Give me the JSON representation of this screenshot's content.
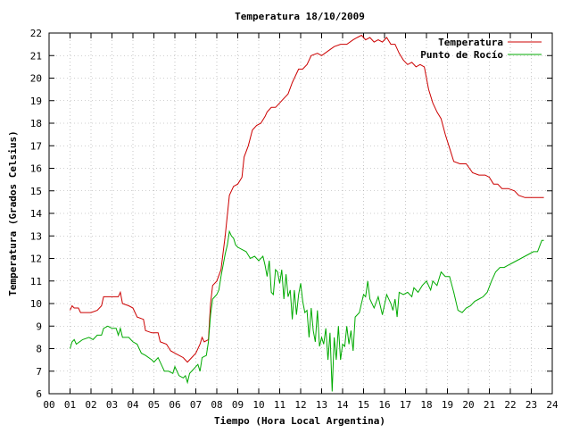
{
  "chart_data": {
    "type": "line",
    "title": "Temperatura 18/10/2009",
    "xlabel": "Tiempo (Hora Local Argentina)",
    "ylabel": "Temperatura (Grados Celsius)",
    "xlim": [
      0,
      24
    ],
    "ylim": [
      6,
      22
    ],
    "x_ticks": [
      0,
      1,
      2,
      3,
      4,
      5,
      6,
      7,
      8,
      9,
      10,
      11,
      12,
      13,
      14,
      15,
      16,
      17,
      18,
      19,
      20,
      21,
      22,
      23,
      24
    ],
    "x_tick_labels": [
      "00",
      "01",
      "02",
      "03",
      "04",
      "05",
      "06",
      "07",
      "08",
      "09",
      "10",
      "11",
      "12",
      "13",
      "14",
      "15",
      "16",
      "17",
      "18",
      "19",
      "20",
      "21",
      "22",
      "23",
      "24"
    ],
    "y_ticks": [
      6,
      7,
      8,
      9,
      10,
      11,
      12,
      13,
      14,
      15,
      16,
      17,
      18,
      19,
      20,
      21,
      22
    ],
    "y_tick_labels": [
      "6",
      "7",
      "8",
      "9",
      "10",
      "11",
      "12",
      "13",
      "14",
      "15",
      "16",
      "17",
      "18",
      "19",
      "20",
      "21",
      "22"
    ],
    "grid": true,
    "legend_position": "top-right",
    "series": [
      {
        "name": "Temperatura",
        "color": "#cc0000",
        "points": [
          [
            1.0,
            9.7
          ],
          [
            1.1,
            9.9
          ],
          [
            1.2,
            9.8
          ],
          [
            1.4,
            9.8
          ],
          [
            1.5,
            9.6
          ],
          [
            2.0,
            9.6
          ],
          [
            2.3,
            9.7
          ],
          [
            2.5,
            9.9
          ],
          [
            2.6,
            10.3
          ],
          [
            3.0,
            10.3
          ],
          [
            3.3,
            10.3
          ],
          [
            3.4,
            10.5
          ],
          [
            3.5,
            10.0
          ],
          [
            3.8,
            9.9
          ],
          [
            4.0,
            9.8
          ],
          [
            4.2,
            9.4
          ],
          [
            4.5,
            9.3
          ],
          [
            4.6,
            8.8
          ],
          [
            4.9,
            8.7
          ],
          [
            5.2,
            8.7
          ],
          [
            5.3,
            8.3
          ],
          [
            5.6,
            8.2
          ],
          [
            5.8,
            7.9
          ],
          [
            6.0,
            7.8
          ],
          [
            6.2,
            7.7
          ],
          [
            6.4,
            7.6
          ],
          [
            6.6,
            7.4
          ],
          [
            6.8,
            7.6
          ],
          [
            7.0,
            7.8
          ],
          [
            7.2,
            8.2
          ],
          [
            7.3,
            8.5
          ],
          [
            7.4,
            8.3
          ],
          [
            7.6,
            8.4
          ],
          [
            7.7,
            10.0
          ],
          [
            7.8,
            10.8
          ],
          [
            8.0,
            11.0
          ],
          [
            8.2,
            11.5
          ],
          [
            8.4,
            13.0
          ],
          [
            8.6,
            14.8
          ],
          [
            8.8,
            15.2
          ],
          [
            9.0,
            15.3
          ],
          [
            9.2,
            15.6
          ],
          [
            9.3,
            16.5
          ],
          [
            9.5,
            17.0
          ],
          [
            9.7,
            17.7
          ],
          [
            9.9,
            17.9
          ],
          [
            10.1,
            18.0
          ],
          [
            10.3,
            18.3
          ],
          [
            10.4,
            18.5
          ],
          [
            10.6,
            18.7
          ],
          [
            10.8,
            18.7
          ],
          [
            11.0,
            18.9
          ],
          [
            11.2,
            19.1
          ],
          [
            11.4,
            19.3
          ],
          [
            11.6,
            19.8
          ],
          [
            11.9,
            20.4
          ],
          [
            12.1,
            20.4
          ],
          [
            12.3,
            20.6
          ],
          [
            12.5,
            21.0
          ],
          [
            12.8,
            21.1
          ],
          [
            13.0,
            21.0
          ],
          [
            13.3,
            21.2
          ],
          [
            13.6,
            21.4
          ],
          [
            13.9,
            21.5
          ],
          [
            14.2,
            21.5
          ],
          [
            14.5,
            21.7
          ],
          [
            14.7,
            21.8
          ],
          [
            14.9,
            21.9
          ],
          [
            15.1,
            21.7
          ],
          [
            15.3,
            21.8
          ],
          [
            15.5,
            21.6
          ],
          [
            15.7,
            21.7
          ],
          [
            15.9,
            21.6
          ],
          [
            16.1,
            21.8
          ],
          [
            16.3,
            21.5
          ],
          [
            16.5,
            21.5
          ],
          [
            16.7,
            21.1
          ],
          [
            16.9,
            20.8
          ],
          [
            17.1,
            20.6
          ],
          [
            17.3,
            20.7
          ],
          [
            17.5,
            20.5
          ],
          [
            17.7,
            20.6
          ],
          [
            17.9,
            20.5
          ],
          [
            18.1,
            19.5
          ],
          [
            18.3,
            18.9
          ],
          [
            18.5,
            18.5
          ],
          [
            18.7,
            18.2
          ],
          [
            18.9,
            17.5
          ],
          [
            19.1,
            16.9
          ],
          [
            19.3,
            16.3
          ],
          [
            19.6,
            16.2
          ],
          [
            19.9,
            16.2
          ],
          [
            20.2,
            15.8
          ],
          [
            20.5,
            15.7
          ],
          [
            20.8,
            15.7
          ],
          [
            21.0,
            15.6
          ],
          [
            21.2,
            15.3
          ],
          [
            21.4,
            15.3
          ],
          [
            21.6,
            15.1
          ],
          [
            21.9,
            15.1
          ],
          [
            22.2,
            15.0
          ],
          [
            22.4,
            14.8
          ],
          [
            22.7,
            14.7
          ],
          [
            23.0,
            14.7
          ],
          [
            23.3,
            14.7
          ],
          [
            23.6,
            14.7
          ]
        ]
      },
      {
        "name": "Punto de Rocío",
        "color": "#00aa00",
        "points": [
          [
            1.0,
            8.0
          ],
          [
            1.1,
            8.3
          ],
          [
            1.2,
            8.4
          ],
          [
            1.3,
            8.2
          ],
          [
            1.6,
            8.4
          ],
          [
            1.9,
            8.5
          ],
          [
            2.1,
            8.4
          ],
          [
            2.3,
            8.6
          ],
          [
            2.5,
            8.6
          ],
          [
            2.6,
            8.9
          ],
          [
            2.8,
            9.0
          ],
          [
            3.0,
            8.9
          ],
          [
            3.2,
            8.9
          ],
          [
            3.3,
            8.6
          ],
          [
            3.4,
            8.9
          ],
          [
            3.5,
            8.5
          ],
          [
            3.8,
            8.5
          ],
          [
            4.0,
            8.3
          ],
          [
            4.2,
            8.2
          ],
          [
            4.4,
            7.8
          ],
          [
            4.6,
            7.7
          ],
          [
            4.9,
            7.5
          ],
          [
            5.0,
            7.4
          ],
          [
            5.2,
            7.6
          ],
          [
            5.4,
            7.2
          ],
          [
            5.5,
            7.0
          ],
          [
            5.7,
            7.0
          ],
          [
            5.9,
            6.9
          ],
          [
            6.0,
            7.2
          ],
          [
            6.2,
            6.8
          ],
          [
            6.4,
            6.7
          ],
          [
            6.5,
            6.8
          ],
          [
            6.6,
            6.5
          ],
          [
            6.7,
            6.9
          ],
          [
            6.9,
            7.1
          ],
          [
            7.1,
            7.3
          ],
          [
            7.2,
            7.0
          ],
          [
            7.3,
            7.6
          ],
          [
            7.5,
            7.7
          ],
          [
            7.6,
            8.3
          ],
          [
            7.7,
            9.5
          ],
          [
            7.8,
            10.2
          ],
          [
            8.0,
            10.4
          ],
          [
            8.1,
            10.6
          ],
          [
            8.2,
            11.2
          ],
          [
            8.4,
            12.2
          ],
          [
            8.5,
            12.6
          ],
          [
            8.6,
            13.2
          ],
          [
            8.7,
            13.0
          ],
          [
            8.8,
            12.9
          ],
          [
            8.9,
            12.6
          ],
          [
            9.0,
            12.5
          ],
          [
            9.2,
            12.4
          ],
          [
            9.4,
            12.3
          ],
          [
            9.6,
            12.0
          ],
          [
            9.8,
            12.1
          ],
          [
            10.0,
            11.9
          ],
          [
            10.2,
            12.1
          ],
          [
            10.3,
            11.7
          ],
          [
            10.4,
            11.2
          ],
          [
            10.5,
            11.9
          ],
          [
            10.6,
            10.5
          ],
          [
            10.7,
            10.4
          ],
          [
            10.8,
            11.5
          ],
          [
            10.9,
            11.4
          ],
          [
            11.0,
            10.9
          ],
          [
            11.1,
            11.5
          ],
          [
            11.2,
            10.2
          ],
          [
            11.3,
            11.3
          ],
          [
            11.4,
            10.3
          ],
          [
            11.5,
            10.6
          ],
          [
            11.6,
            9.3
          ],
          [
            11.7,
            10.6
          ],
          [
            11.8,
            9.5
          ],
          [
            11.9,
            10.4
          ],
          [
            12.0,
            10.9
          ],
          [
            12.1,
            10.1
          ],
          [
            12.2,
            9.6
          ],
          [
            12.3,
            9.7
          ],
          [
            12.4,
            8.5
          ],
          [
            12.5,
            9.8
          ],
          [
            12.6,
            8.8
          ],
          [
            12.7,
            8.3
          ],
          [
            12.8,
            9.7
          ],
          [
            12.9,
            8.1
          ],
          [
            13.0,
            8.5
          ],
          [
            13.1,
            8.2
          ],
          [
            13.2,
            8.9
          ],
          [
            13.3,
            7.5
          ],
          [
            13.4,
            8.7
          ],
          [
            13.5,
            6.1
          ],
          [
            13.6,
            8.5
          ],
          [
            13.7,
            7.5
          ],
          [
            13.8,
            9.0
          ],
          [
            13.9,
            7.5
          ],
          [
            14.0,
            8.2
          ],
          [
            14.1,
            8.1
          ],
          [
            14.2,
            9.0
          ],
          [
            14.3,
            8.2
          ],
          [
            14.4,
            8.8
          ],
          [
            14.5,
            7.9
          ],
          [
            14.6,
            9.4
          ],
          [
            14.8,
            9.6
          ],
          [
            15.0,
            10.4
          ],
          [
            15.1,
            10.3
          ],
          [
            15.2,
            11.0
          ],
          [
            15.3,
            10.2
          ],
          [
            15.5,
            9.8
          ],
          [
            15.7,
            10.3
          ],
          [
            15.9,
            9.5
          ],
          [
            16.1,
            10.4
          ],
          [
            16.3,
            10.0
          ],
          [
            16.4,
            9.7
          ],
          [
            16.5,
            10.2
          ],
          [
            16.6,
            9.4
          ],
          [
            16.7,
            10.5
          ],
          [
            16.9,
            10.4
          ],
          [
            17.1,
            10.5
          ],
          [
            17.3,
            10.3
          ],
          [
            17.4,
            10.7
          ],
          [
            17.6,
            10.5
          ],
          [
            17.8,
            10.8
          ],
          [
            18.0,
            11.0
          ],
          [
            18.2,
            10.6
          ],
          [
            18.3,
            11.0
          ],
          [
            18.5,
            10.8
          ],
          [
            18.7,
            11.4
          ],
          [
            18.9,
            11.2
          ],
          [
            19.1,
            11.2
          ],
          [
            19.3,
            10.5
          ],
          [
            19.5,
            9.7
          ],
          [
            19.7,
            9.6
          ],
          [
            19.9,
            9.8
          ],
          [
            20.1,
            9.9
          ],
          [
            20.3,
            10.1
          ],
          [
            20.5,
            10.2
          ],
          [
            20.7,
            10.3
          ],
          [
            20.9,
            10.5
          ],
          [
            21.1,
            11.0
          ],
          [
            21.3,
            11.4
          ],
          [
            21.5,
            11.6
          ],
          [
            21.7,
            11.6
          ],
          [
            21.9,
            11.7
          ],
          [
            22.1,
            11.8
          ],
          [
            22.3,
            11.9
          ],
          [
            22.5,
            12.0
          ],
          [
            22.7,
            12.1
          ],
          [
            22.9,
            12.2
          ],
          [
            23.1,
            12.3
          ],
          [
            23.3,
            12.3
          ],
          [
            23.5,
            12.8
          ],
          [
            23.6,
            12.8
          ]
        ]
      }
    ]
  }
}
